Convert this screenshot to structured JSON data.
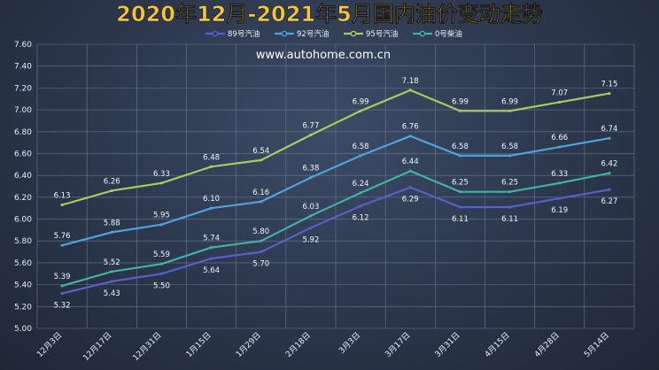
{
  "title": "2020年12月-2021年5月国内油价变动走势",
  "watermark": "www.autohome.com.cn",
  "chart_data": {
    "type": "line",
    "title": "2020年12月-2021年5月国内油价变动走势",
    "categories": [
      "12月3日",
      "12月17日",
      "12月31日",
      "1月15日",
      "1月29日",
      "2月18日",
      "3月3日",
      "3月17日",
      "3月31日",
      "4月15日",
      "4月28日",
      "5月14日"
    ],
    "ylim": [
      5.0,
      7.6
    ],
    "yticks": [
      "5.00",
      "5.20",
      "5.40",
      "5.60",
      "5.80",
      "6.00",
      "6.20",
      "6.40",
      "6.60",
      "6.80",
      "7.00",
      "7.20",
      "7.40",
      "7.60"
    ],
    "grid": true,
    "legend_position": "top",
    "series": [
      {
        "name": "89号汽油",
        "color": "#5a5fc8",
        "label_position": "below",
        "values": [
          5.32,
          5.43,
          5.5,
          5.64,
          5.7,
          5.92,
          6.12,
          6.29,
          6.11,
          6.11,
          6.19,
          6.27
        ],
        "labels": [
          "5.32",
          "5.43",
          "5.50",
          "5.64",
          "5.70",
          "5.92",
          "6.12",
          "6.29",
          "6.11",
          "6.11",
          "6.19",
          "6.27"
        ]
      },
      {
        "name": "92号汽油",
        "color": "#4fa3dc",
        "label_position": "above",
        "values": [
          5.76,
          5.88,
          5.95,
          6.1,
          6.16,
          6.38,
          6.58,
          6.76,
          6.58,
          6.58,
          6.66,
          6.74
        ],
        "labels": [
          "5.76",
          "5.88",
          "5.95",
          "6.10",
          "6.16",
          "6.38",
          "6.58",
          "6.76",
          "6.58",
          "6.58",
          "6.66",
          "6.74"
        ]
      },
      {
        "name": "95号汽油",
        "color": "#a8cc5c",
        "label_position": "above",
        "values": [
          6.13,
          6.26,
          6.33,
          6.48,
          6.54,
          6.77,
          6.99,
          7.18,
          6.99,
          6.99,
          7.07,
          7.15
        ],
        "labels": [
          "6.13",
          "6.26",
          "6.33",
          "6.48",
          "6.54",
          "6.77",
          "6.99",
          "7.18",
          "6.99",
          "6.99",
          "7.07",
          "7.15"
        ]
      },
      {
        "name": "0号柴油",
        "color": "#3fb3a4",
        "label_position": "above",
        "values": [
          5.39,
          5.52,
          5.59,
          5.74,
          5.8,
          6.03,
          6.24,
          6.44,
          6.25,
          6.25,
          6.33,
          6.42
        ],
        "labels": [
          "5.39",
          "5.52",
          "5.59",
          "5.74",
          "5.80",
          "6.03",
          "6.24",
          "6.44",
          "6.25",
          "6.25",
          "6.33",
          "6.42"
        ]
      }
    ]
  }
}
